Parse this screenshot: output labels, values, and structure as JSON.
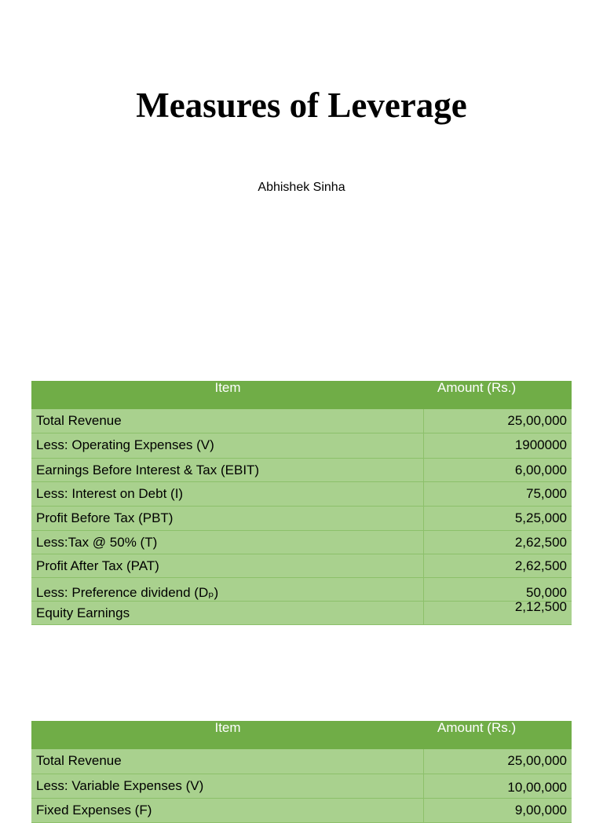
{
  "header": {
    "title": "Measures of Leverage",
    "author": "Abhishek Sinha"
  },
  "tables": [
    {
      "columns": [
        "Item",
        "Amount (Rs.)"
      ],
      "rows": [
        [
          "Total Revenue",
          "25,00,000"
        ],
        [
          "Less: Operating Expenses (V)",
          "1900000"
        ],
        [
          "Earnings Before Interest & Tax (EBIT)",
          "6,00,000"
        ],
        [
          "Less: Interest on Debt (I)",
          "75,000"
        ],
        [
          "Profit Before Tax (PBT)",
          "5,25,000"
        ],
        [
          "Less:Tax @ 50% (T)",
          "2,62,500"
        ],
        [
          "Profit After Tax (PAT)",
          "2,62,500"
        ],
        [
          "Less: Preference dividend (Dₚ)",
          "50,000"
        ],
        [
          "Equity Earnings",
          "2,12,500"
        ]
      ]
    },
    {
      "columns": [
        "Item",
        "Amount (Rs.)"
      ],
      "rows": [
        [
          "Total Revenue",
          "25,00,000"
        ],
        [
          "Less: Variable Expenses (V)",
          "10,00,000"
        ],
        [
          "Fixed Expenses (F)",
          "9,00,000"
        ]
      ]
    }
  ]
}
